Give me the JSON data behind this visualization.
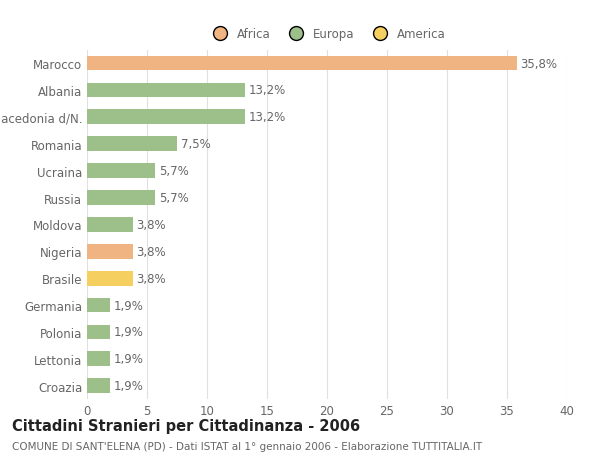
{
  "categories": [
    "Marocco",
    "Albania",
    "Macedonia d/N.",
    "Romania",
    "Ucraina",
    "Russia",
    "Moldova",
    "Nigeria",
    "Brasile",
    "Germania",
    "Polonia",
    "Lettonia",
    "Croazia"
  ],
  "values": [
    35.8,
    13.2,
    13.2,
    7.5,
    5.7,
    5.7,
    3.8,
    3.8,
    3.8,
    1.9,
    1.9,
    1.9,
    1.9
  ],
  "labels": [
    "35,8%",
    "13,2%",
    "13,2%",
    "7,5%",
    "5,7%",
    "5,7%",
    "3,8%",
    "3,8%",
    "3,8%",
    "1,9%",
    "1,9%",
    "1,9%",
    "1,9%"
  ],
  "colors": [
    "#F0B482",
    "#9DC08B",
    "#9DC08B",
    "#9DC08B",
    "#9DC08B",
    "#9DC08B",
    "#9DC08B",
    "#F0B482",
    "#F5D060",
    "#9DC08B",
    "#9DC08B",
    "#9DC08B",
    "#9DC08B"
  ],
  "legend_labels": [
    "Africa",
    "Europa",
    "America"
  ],
  "legend_colors": [
    "#F0B482",
    "#9DC08B",
    "#F5D060"
  ],
  "title": "Cittadini Stranieri per Cittadinanza - 2006",
  "subtitle": "COMUNE DI SANT'ELENA (PD) - Dati ISTAT al 1° gennaio 2006 - Elaborazione TUTTITALIA.IT",
  "xlim": [
    0,
    40
  ],
  "xticks": [
    0,
    5,
    10,
    15,
    20,
    25,
    30,
    35,
    40
  ],
  "background_color": "#ffffff",
  "grid_color": "#e0e0e0",
  "bar_height": 0.55,
  "label_fontsize": 8.5,
  "tick_fontsize": 8.5,
  "title_fontsize": 10.5,
  "subtitle_fontsize": 7.5,
  "text_color": "#666666"
}
